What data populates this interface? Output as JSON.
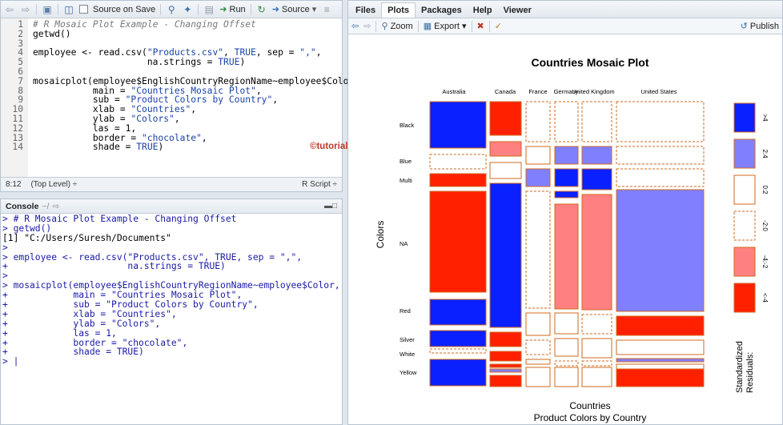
{
  "editor": {
    "toolbar": {
      "source_on_save": "Source on Save",
      "run": "Run",
      "source": "Source"
    },
    "lines": [
      {
        "n": "1",
        "html": "<span class='cm'># R Mosaic Plot Example - Changing Offset</span>"
      },
      {
        "n": "2",
        "html": "getwd()"
      },
      {
        "n": "3",
        "html": ""
      },
      {
        "n": "4",
        "html": "employee &lt;- read.csv(<span class='str'>\"Products.csv\"</span>, <span class='kw'>TRUE</span>, sep = <span class='str'>\",\"</span>,"
      },
      {
        "n": "5",
        "html": "                     na.strings = <span class='kw'>TRUE</span>)"
      },
      {
        "n": "6",
        "html": ""
      },
      {
        "n": "7",
        "html": "mosaicplot(employee$EnglishCountryRegionName~employee$Color,"
      },
      {
        "n": "8",
        "html": "           main = <span class='str'>\"Countries Mosaic Plot\"</span>,"
      },
      {
        "n": "9",
        "html": "           sub = <span class='str'>\"Product Colors by Country\"</span>,"
      },
      {
        "n": "10",
        "html": "           xlab = <span class='str'>\"Countries\"</span>,"
      },
      {
        "n": "11",
        "html": "           ylab = <span class='str'>\"Colors\"</span>,"
      },
      {
        "n": "12",
        "html": "           las = 1,"
      },
      {
        "n": "13",
        "html": "           border = <span class='str'>\"chocolate\"</span>,"
      },
      {
        "n": "14",
        "html": "           shade = <span class='kw'>TRUE</span>)"
      }
    ],
    "status": {
      "position": "8:12",
      "scope": "(Top Level) ÷",
      "filetype": "R Script ÷"
    },
    "watermark": "©tutorialgateway.org"
  },
  "console": {
    "title": "Console",
    "path": "~/",
    "lines": [
      {
        "t": "> # R Mosaic Plot Example - Changing Offset",
        "out": false
      },
      {
        "t": "> getwd()",
        "out": false
      },
      {
        "t": "[1] \"C:/Users/Suresh/Documents\"",
        "out": true
      },
      {
        "t": ">",
        "out": false
      },
      {
        "t": "> employee <- read.csv(\"Products.csv\", TRUE, sep = \",\",",
        "out": false
      },
      {
        "t": "+                      na.strings = TRUE)",
        "out": false
      },
      {
        "t": ">",
        "out": false
      },
      {
        "t": "> mosaicplot(employee$EnglishCountryRegionName~employee$Color,",
        "out": false
      },
      {
        "t": "+            main = \"Countries Mosaic Plot\",",
        "out": false
      },
      {
        "t": "+            sub = \"Product Colors by Country\",",
        "out": false
      },
      {
        "t": "+            xlab = \"Countries\",",
        "out": false
      },
      {
        "t": "+            ylab = \"Colors\",",
        "out": false
      },
      {
        "t": "+            las = 1,",
        "out": false
      },
      {
        "t": "+            border = \"chocolate\",",
        "out": false
      },
      {
        "t": "+            shade = TRUE)",
        "out": false
      },
      {
        "t": "> |",
        "out": false
      }
    ]
  },
  "right_pane": {
    "tabs": [
      "Files",
      "Plots",
      "Packages",
      "Help",
      "Viewer"
    ],
    "active_tab": "Plots",
    "toolbar": {
      "zoom": "Zoom",
      "export": "Export ▾",
      "publish": "Publish"
    }
  },
  "chart_data": {
    "type": "mosaic",
    "title": "Countries Mosaic Plot",
    "subtitle": "Product Colors by Country",
    "xlabel": "Countries",
    "ylabel": "Colors",
    "countries": [
      "Australia",
      "Canada",
      "France",
      "Germany",
      "United Kingdom",
      "United States"
    ],
    "colors": [
      "Black",
      "Blue",
      "Multi",
      "NA",
      "Red",
      "Silver",
      "White",
      "Yellow"
    ],
    "legend": {
      "title": "Standardized Residuals:",
      "labels": [
        ">4",
        "2:4",
        "0:2",
        "-2:0",
        "-4:-2",
        "<-4"
      ],
      "fills": [
        "#0a20ff",
        "#8080ff",
        "#ffffff",
        "#ffffff",
        "#ff8080",
        "#ff2000"
      ],
      "dashed": [
        false,
        false,
        false,
        true,
        false,
        false
      ]
    },
    "border_color": "#d2691e"
  }
}
